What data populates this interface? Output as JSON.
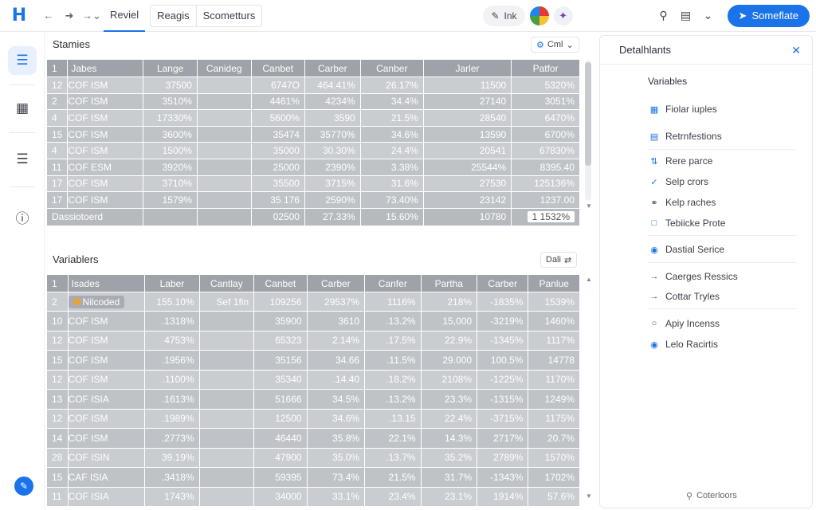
{
  "topbar": {
    "logo": "H",
    "tabs": [
      {
        "label": "Reviel"
      },
      {
        "label": "Reagis"
      },
      {
        "label": "Scometturs"
      }
    ],
    "ink_label": "Ink",
    "primary_button": "Someflate"
  },
  "table1": {
    "title": "Stamies",
    "chip_label": "Cml",
    "headers": [
      "1",
      "Jabes",
      "Lange",
      "Canideg",
      "Canbet",
      "Carber",
      "Canber",
      "Jarler",
      "Patfor"
    ],
    "rows": [
      [
        "12",
        "COF ISM",
        "37500",
        "",
        "6747O",
        "464.41%",
        "26.17%",
        "11500",
        "5320%"
      ],
      [
        "2",
        "COF ISM",
        "3510%",
        "",
        "4461%",
        "4234%",
        "34.4%",
        "27140",
        "3051%"
      ],
      [
        "4",
        "COF ISM",
        "17330%",
        "",
        "5600%",
        "3590",
        "21.5%",
        "28540",
        "6470%"
      ],
      [
        "15",
        "COF ISM",
        "3600%",
        "",
        "35474",
        "35770%",
        "34.6%",
        "13590",
        "6700%"
      ],
      [
        "4",
        "COF ISM",
        "1500%",
        "",
        "35000",
        "30.30%",
        "24.4%",
        "20541",
        "67830%"
      ],
      [
        "11",
        "COF ESM",
        "3920%",
        "",
        "25000",
        "2390%",
        "3.38%",
        "25544%",
        "8395.40"
      ],
      [
        "17",
        "COF ISM",
        "3710%",
        "",
        "35500",
        "3715%",
        "31.6%",
        "27530",
        "125136%"
      ],
      [
        "17",
        "COF ISM",
        "1579%",
        "",
        "35 176",
        "2590%",
        "73.40%",
        "23142",
        "1237.00"
      ]
    ],
    "total": {
      "label": "Dassiotoerd",
      "values": [
        "",
        "",
        "02500",
        "27.33%",
        "15.60%",
        "10780",
        "1 1532%"
      ]
    }
  },
  "table2": {
    "title": "Variablers",
    "chip_label": "Dali",
    "headers": [
      "1",
      "Isades",
      "Laber",
      "Cantlay",
      "Canbet",
      "Carber",
      "Canfer",
      "Partha",
      "Carber",
      "Panlue"
    ],
    "rows": [
      [
        "2",
        "Nilcoded",
        "155.10%",
        "Sef 1fin",
        "109256",
        "29537%",
        "1116%",
        "218%",
        "-1835%",
        "1539%"
      ],
      [
        "10",
        "COF ISM",
        ".1318%",
        "",
        "35900",
        "3610",
        ".13.2%",
        "15,000",
        "-3219%",
        "1460%"
      ],
      [
        "12",
        "COF ISM",
        "4753%",
        "",
        "65323",
        "2.14%",
        ".17.5%",
        "22.9%",
        "-1345%",
        "1117%"
      ],
      [
        "15",
        "COF ISM",
        ".1956%",
        "",
        "35156",
        "34.66",
        ".11.5%",
        "29.000",
        "100.5%",
        "14778"
      ],
      [
        "12",
        "COF ISM",
        ".1100%",
        "",
        "35340",
        ".14.40",
        ".18.2%",
        "2108%",
        "-1225%",
        "1170%"
      ],
      [
        "13",
        "COF ISIA",
        ".1613%",
        "",
        "51666",
        "34.5%",
        ".13.2%",
        "23.3%",
        "-1315%",
        "1249%"
      ],
      [
        "12",
        "COF ISM",
        ".1989%",
        "",
        "12500",
        "34.6%",
        ".13.15",
        "22.4%",
        "-3715%",
        "1175%"
      ],
      [
        "14",
        "COF ISM",
        ".2773%",
        "",
        "46440",
        "35.8%",
        "22.1%",
        "14.3%",
        "2717%",
        "20.7%"
      ],
      [
        "28",
        "COF ISIN",
        "39.19%",
        "",
        "47900",
        "35.0%",
        ".13.7%",
        "35.2%",
        "2789%",
        "1570%"
      ],
      [
        "15",
        "CAF ISIA",
        ".3418%",
        "",
        "59395",
        "73.4%",
        "21.5%",
        "31.7%",
        "-1343%",
        "1702%"
      ],
      [
        "11",
        "COF ISIA",
        "1743%",
        "",
        "34000",
        "33.1%",
        "23.4%",
        "23.1%",
        "1914%",
        "57.6%"
      ]
    ]
  },
  "panel": {
    "title": "Detalhlants",
    "sections": [
      {
        "title": "Variables",
        "items": [
          {
            "icon": "table-icon",
            "label": "Fiolar iuples"
          },
          {
            "icon": "list-icon",
            "label": "Retrnfestions"
          }
        ]
      },
      {
        "title": "",
        "items": [
          {
            "icon": "sort-icon",
            "label": "Rere parce"
          },
          {
            "icon": "check-icon",
            "label": "Selp crors"
          },
          {
            "icon": "link-icon",
            "label": "Kelp raches"
          },
          {
            "icon": "doc-icon",
            "label": "Tebiicke Prote"
          }
        ]
      },
      {
        "title": "",
        "items": [
          {
            "icon": "lock-icon",
            "label": "Dastial Serice"
          }
        ]
      },
      {
        "title": "",
        "items": [
          {
            "icon": "arrow-right-icon",
            "label": "Caerges Ressics"
          },
          {
            "icon": "arrow-right-icon",
            "label": "Cottar Tryles"
          }
        ]
      },
      {
        "title": "",
        "items": [
          {
            "icon": "circle-icon",
            "label": "Apiy Incenss"
          },
          {
            "icon": "lock-icon",
            "label": "Lelo Racirtis"
          }
        ]
      }
    ],
    "footer": "Coterloors"
  }
}
